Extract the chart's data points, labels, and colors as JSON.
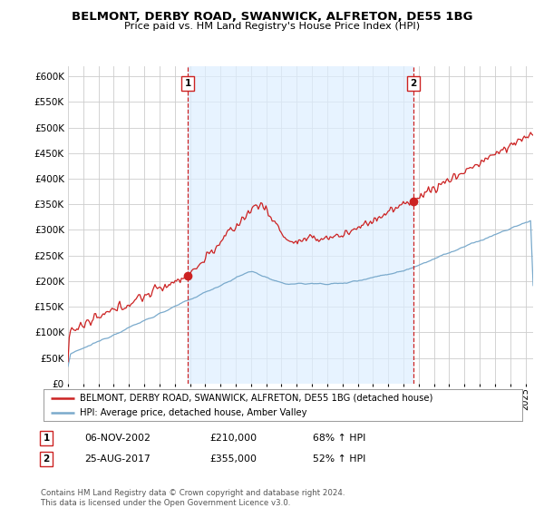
{
  "title": "BELMONT, DERBY ROAD, SWANWICK, ALFRETON, DE55 1BG",
  "subtitle": "Price paid vs. HM Land Registry's House Price Index (HPI)",
  "ylim": [
    0,
    620000
  ],
  "yticks": [
    0,
    50000,
    100000,
    150000,
    200000,
    250000,
    300000,
    350000,
    400000,
    450000,
    500000,
    550000,
    600000
  ],
  "xlim_start": 1995.0,
  "xlim_end": 2025.5,
  "sale1_x": 2002.85,
  "sale1_y": 210000,
  "sale2_x": 2017.65,
  "sale2_y": 355000,
  "legend_line1": "BELMONT, DERBY ROAD, SWANWICK, ALFRETON, DE55 1BG (detached house)",
  "legend_line2": "HPI: Average price, detached house, Amber Valley",
  "annotation1_date": "06-NOV-2002",
  "annotation1_price": "£210,000",
  "annotation1_hpi": "68% ↑ HPI",
  "annotation2_date": "25-AUG-2017",
  "annotation2_price": "£355,000",
  "annotation2_hpi": "52% ↑ HPI",
  "footer": "Contains HM Land Registry data © Crown copyright and database right 2024.\nThis data is licensed under the Open Government Licence v3.0.",
  "line_color_red": "#cc2222",
  "line_color_blue": "#7aaacc",
  "shade_color": "#ddeeff",
  "bg_color": "#ffffff",
  "grid_color": "#cccccc"
}
